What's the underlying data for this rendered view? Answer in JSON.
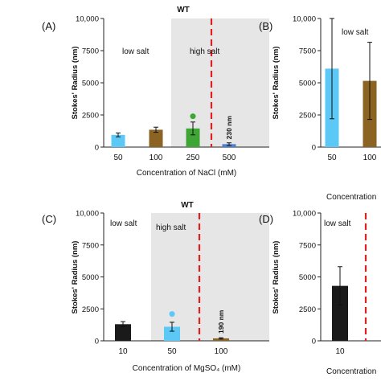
{
  "chart_data": [
    {
      "panel": "(A)",
      "type": "bar",
      "title": "WT",
      "xlabel": "Concentration of NaCl (mM)",
      "ylabel": "Stokes' Radius (nm)",
      "ylim": [
        0,
        10000
      ],
      "yticks": [
        "0",
        "2500",
        "5000",
        "7500",
        "10,000"
      ],
      "region_labels": [
        "low salt",
        "high salt"
      ],
      "categories": [
        "50",
        "100",
        "250",
        "500"
      ],
      "values": [
        950,
        1350,
        1450,
        230
      ],
      "errors": [
        150,
        200,
        500,
        100
      ],
      "colors": [
        "#5bc8f5",
        "#8b6323",
        "#3fa535",
        "#4a7fd4"
      ],
      "outliers": [
        null,
        null,
        2400,
        null
      ],
      "bar_annotations": [
        "",
        "",
        "",
        "230 nm"
      ]
    },
    {
      "panel": "(B)",
      "type": "bar",
      "title": "",
      "xlabel": "Concentration",
      "ylabel": "Stokes' Radius (nm)",
      "ylim": [
        0,
        10000
      ],
      "yticks": [
        "0",
        "2500",
        "5000",
        "7500",
        "10,000"
      ],
      "region_labels": [
        "low salt"
      ],
      "categories": [
        "50",
        "100"
      ],
      "values": [
        6100,
        5150
      ],
      "errors": [
        3900,
        3000
      ],
      "colors": [
        "#5bc8f5",
        "#8b6323"
      ]
    },
    {
      "panel": "(C)",
      "type": "bar",
      "title": "WT",
      "xlabel": "Concentration of MgSO₄ (mM)",
      "ylabel": "Stokes' Radius (nm)",
      "ylim": [
        0,
        10000
      ],
      "yticks": [
        "0",
        "2500",
        "5000",
        "7500",
        "10,000"
      ],
      "region_labels": [
        "low salt",
        "high salt"
      ],
      "categories": [
        "10",
        "50",
        "100"
      ],
      "values": [
        1300,
        1100,
        190
      ],
      "errors": [
        200,
        350,
        50
      ],
      "colors": [
        "#1a1a1a",
        "#5bc8f5",
        "#8b6323"
      ],
      "outliers": [
        null,
        2100,
        null
      ],
      "bar_annotations": [
        "",
        "",
        "190 nm"
      ]
    },
    {
      "panel": "(D)",
      "type": "bar",
      "title": "",
      "xlabel": "Concentration",
      "ylabel": "Stokes' Radius (nm)",
      "ylim": [
        0,
        10000
      ],
      "yticks": [
        "0",
        "2500",
        "5000",
        "7500",
        "10,000"
      ],
      "region_labels": [
        "low salt"
      ],
      "categories": [
        "10"
      ],
      "values": [
        4300
      ],
      "errors": [
        1500
      ],
      "colors": [
        "#1a1a1a"
      ]
    }
  ]
}
